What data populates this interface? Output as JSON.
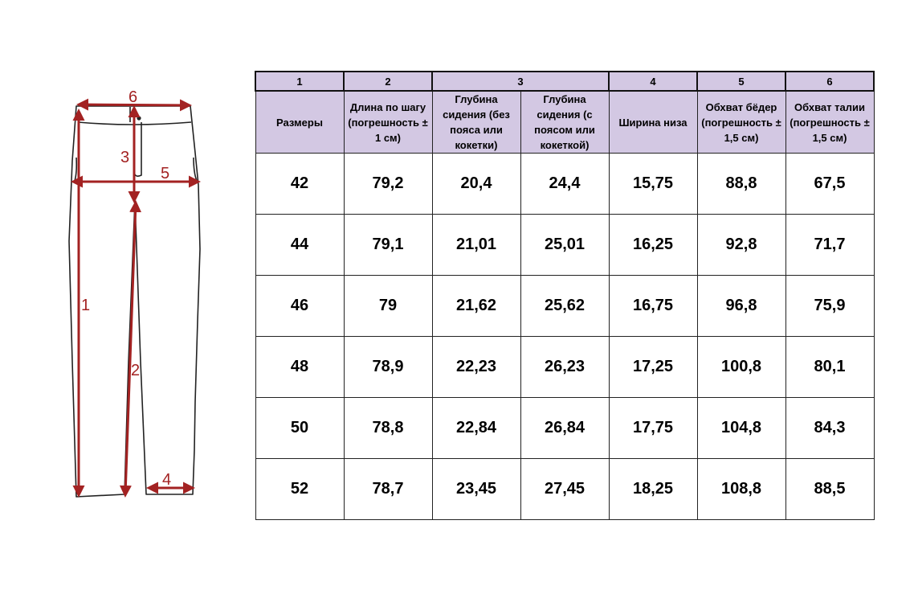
{
  "diagram": {
    "labels": [
      "1",
      "2",
      "3",
      "4",
      "5",
      "6"
    ],
    "color": "#a32222"
  },
  "table": {
    "number_row": [
      "1",
      "2",
      "3",
      "4",
      "5",
      "6"
    ],
    "headers": [
      "Размеры",
      "Длина по шагу (погрешность ± 1 см)",
      "Глубина сидения (без пояса или кокетки)",
      "Глубина сидения  (с поясом или кокеткой)",
      "Ширина низа",
      "Обхват бёдер (погрешность ± 1,5 см)",
      "Обхват талии (погрешность ± 1,5 см)"
    ],
    "rows": [
      [
        "42",
        "79,2",
        "20,4",
        "24,4",
        "15,75",
        "88,8",
        "67,5"
      ],
      [
        "44",
        "79,1",
        "21,01",
        "25,01",
        "16,25",
        "92,8",
        "71,7"
      ],
      [
        "46",
        "79",
        "21,62",
        "25,62",
        "16,75",
        "96,8",
        "75,9"
      ],
      [
        "48",
        "78,9",
        "22,23",
        "26,23",
        "17,25",
        "100,8",
        "80,1"
      ],
      [
        "50",
        "78,8",
        "22,84",
        "26,84",
        "17,75",
        "104,8",
        "84,3"
      ],
      [
        "52",
        "78,7",
        "23,45",
        "27,45",
        "18,25",
        "108,8",
        "88,5"
      ]
    ],
    "header_bg": "#d3c8e3"
  }
}
